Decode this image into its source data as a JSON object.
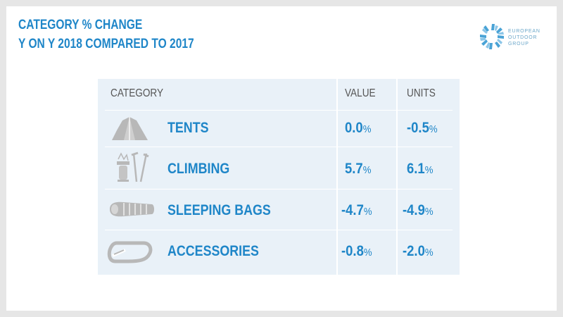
{
  "title": {
    "line1": "CATEGORY % CHANGE",
    "line2": "Y ON Y 2018 COMPARED TO 2017"
  },
  "logo": {
    "name": "european-outdoor-group-logo",
    "line1": "EUROPEAN",
    "line2": "OUTDOOR",
    "line3": "GROUP"
  },
  "table": {
    "headers": {
      "category": "CATEGORY",
      "value": "VALUE",
      "units": "UNITS"
    },
    "rows": [
      {
        "icon": "tent-icon",
        "category": "TENTS",
        "value": "0.0",
        "units": "-0.5"
      },
      {
        "icon": "climbing-gear-icon",
        "category": "CLIMBING",
        "value": "5.7",
        "units": "6.1"
      },
      {
        "icon": "sleeping-bag-icon",
        "category": "SLEEPING BAGS",
        "value": "-4.7",
        "units": "-4.9"
      },
      {
        "icon": "carabiner-icon",
        "category": "ACCESSORIES",
        "value": "-0.8",
        "units": "-2.0"
      }
    ],
    "unit_symbol": "%"
  },
  "colors": {
    "accent": "#1f86c8",
    "panel": "#e9f1f8",
    "icon_gray": "#b8b8b8"
  }
}
